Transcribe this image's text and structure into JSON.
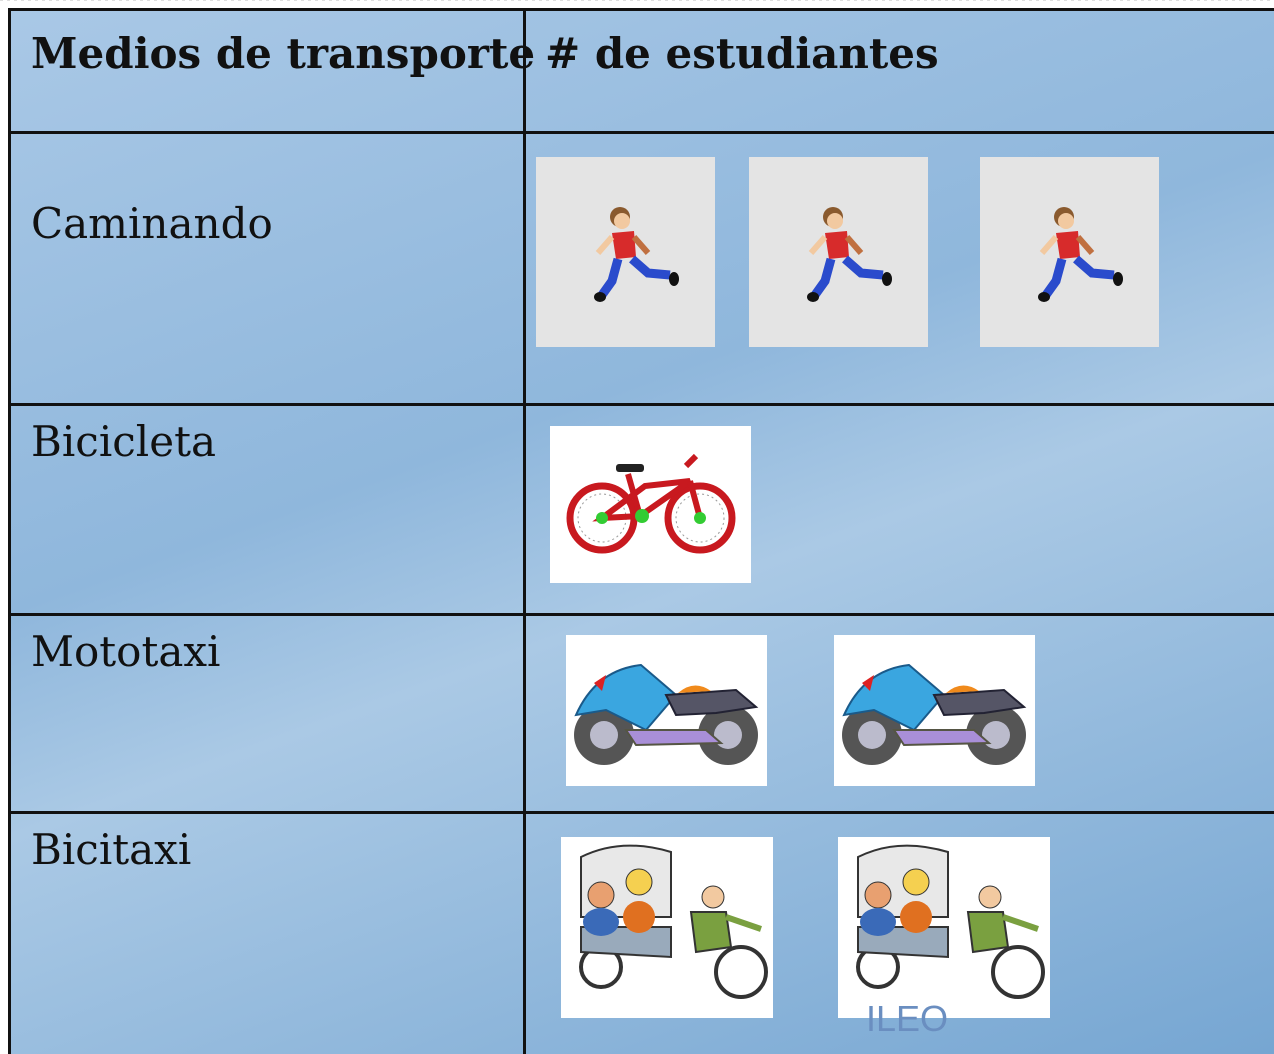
{
  "table": {
    "header": [
      "Medios de transporte",
      "# de estudiantes"
    ],
    "rows": [
      {
        "label": "Caminando",
        "count": 3
      },
      {
        "label": "Bicicleta",
        "count": 1
      },
      {
        "label": "Mototaxi",
        "count": 2
      },
      {
        "label": "Bicitaxi",
        "count": 2
      }
    ]
  },
  "watermark": "ILEO"
}
